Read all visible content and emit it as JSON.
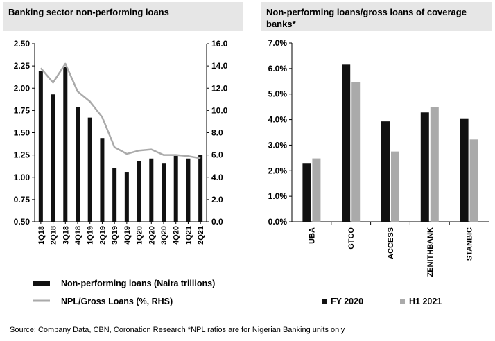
{
  "left_title": "Banking sector non-performing loans",
  "right_title": "Non-performing loans/gross loans of coverage banks*",
  "source": "Source: Company Data, CBN, Coronation Research  *NPL ratios are for Nigerian Banking units only",
  "chart_data": [
    {
      "type": "bar",
      "categories": [
        "1Q18",
        "2Q18",
        "3Q18",
        "4Q18",
        "1Q19",
        "2Q19",
        "3Q19",
        "4Q19",
        "1Q20",
        "2Q20",
        "3Q20",
        "4Q20",
        "1Q21",
        "2Q21"
      ],
      "series": [
        {
          "name": "Non-performing loans (Naira trillions)",
          "type": "bar",
          "axis": "left",
          "color": "#111111",
          "values": [
            2.19,
            1.93,
            2.24,
            1.79,
            1.67,
            1.44,
            1.1,
            1.06,
            1.18,
            1.21,
            1.16,
            1.24,
            1.21,
            1.25
          ]
        },
        {
          "name": "NPL/Gross Loans (%, RHS)",
          "type": "line",
          "axis": "right",
          "color": "#aaaaaa",
          "values": [
            13.8,
            12.5,
            14.2,
            11.7,
            10.8,
            9.4,
            6.7,
            6.1,
            6.4,
            6.5,
            6.0,
            6.0,
            5.9,
            5.7
          ]
        }
      ],
      "yleft": {
        "min": 0.5,
        "max": 2.5,
        "step": 0.25
      },
      "yright": {
        "min": 0.0,
        "max": 16.0,
        "step": 2.0
      },
      "legend_position": "bottom"
    },
    {
      "type": "bar",
      "categories": [
        "UBA",
        "GTCO",
        "ACCESS",
        "ZENITHBANK",
        "STANBIC"
      ],
      "series": [
        {
          "name": "FY 2020",
          "color": "#111111",
          "values": [
            2.3,
            6.15,
            3.93,
            4.28,
            4.05
          ]
        },
        {
          "name": "H1 2021",
          "color": "#aaaaaa",
          "values": [
            2.48,
            5.47,
            2.75,
            4.5,
            3.22
          ]
        }
      ],
      "ylim": [
        0,
        7
      ],
      "ystep": 1,
      "yformat": "percent1",
      "legend_position": "bottom"
    }
  ]
}
